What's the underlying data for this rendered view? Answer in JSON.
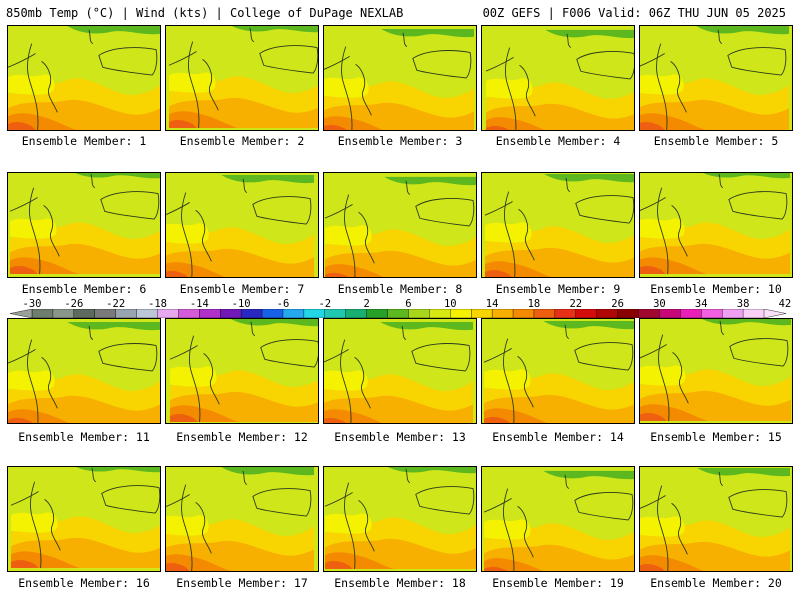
{
  "header": {
    "left": "850mb Temp (°C) | Wind (kts) | College of DuPage NEXLAB",
    "right": "00Z GEFS | F006 Valid: 06Z THU JUN 05 2025"
  },
  "panels": [
    {
      "label": "Ensemble Member: 1"
    },
    {
      "label": "Ensemble Member: 2"
    },
    {
      "label": "Ensemble Member: 3"
    },
    {
      "label": "Ensemble Member: 4"
    },
    {
      "label": "Ensemble Member: 5"
    },
    {
      "label": "Ensemble Member: 6"
    },
    {
      "label": "Ensemble Member: 7"
    },
    {
      "label": "Ensemble Member: 8"
    },
    {
      "label": "Ensemble Member: 9"
    },
    {
      "label": "Ensemble Member: 10"
    },
    {
      "label": "Ensemble Member: 11"
    },
    {
      "label": "Ensemble Member: 12"
    },
    {
      "label": "Ensemble Member: 13"
    },
    {
      "label": "Ensemble Member: 14"
    },
    {
      "label": "Ensemble Member: 15"
    },
    {
      "label": "Ensemble Member: 16"
    },
    {
      "label": "Ensemble Member: 17"
    },
    {
      "label": "Ensemble Member: 18"
    },
    {
      "label": "Ensemble Member: 19"
    },
    {
      "label": "Ensemble Member: 20"
    }
  ],
  "colorbar": {
    "tick_labels": [
      "-30",
      "-26",
      "-22",
      "-18",
      "-14",
      "-10",
      "-6",
      "-2",
      "2",
      "6",
      "10",
      "14",
      "18",
      "22",
      "26",
      "30",
      "34",
      "38",
      "42"
    ],
    "colors": [
      "#6e7e6e",
      "#8a968a",
      "#5e6a5e",
      "#7a7a7a",
      "#9aa4ae",
      "#bcc6d6",
      "#e6a8ee",
      "#d45cd8",
      "#b030c8",
      "#7018b8",
      "#2828c0",
      "#1860e6",
      "#24a8ee",
      "#22d6e6",
      "#20c8b0",
      "#18b070",
      "#26a028",
      "#5cb81e",
      "#a8d61a",
      "#d6ea12",
      "#f4f200",
      "#f8d400",
      "#f8b000",
      "#f48a00",
      "#ee6010",
      "#e83018",
      "#d40c0c",
      "#b00606",
      "#8a0000",
      "#a00830",
      "#c80878",
      "#e820b8",
      "#f060e0",
      "#f0a0f0",
      "#f8d0f8"
    ]
  }
}
